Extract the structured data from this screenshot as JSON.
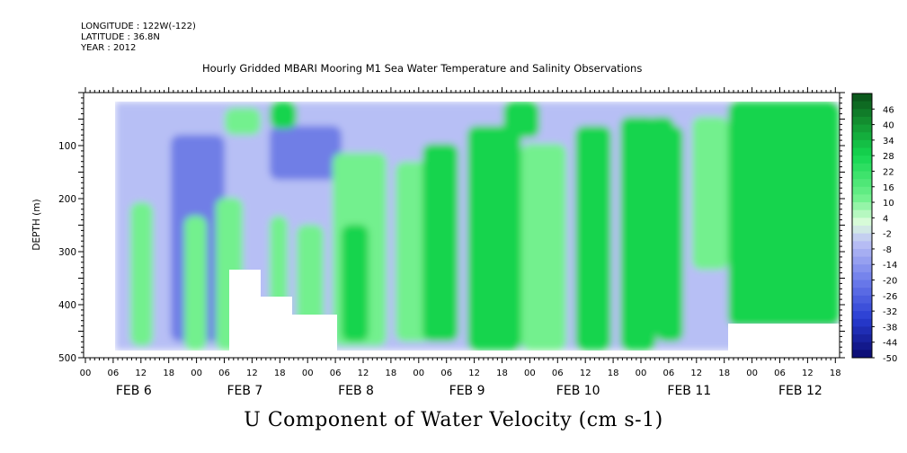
{
  "header": {
    "longitude": "LONGITUDE : 122W(-122)",
    "latitude": "LATITUDE : 36.8N",
    "year": "YEAR : 2012"
  },
  "chart_data": {
    "type": "heatmap",
    "title": "Hourly Gridded MBARI Mooring M1 Sea Water Temperature and Salinity Observations",
    "bottom_title": "U Component of Water Velocity (cm s-1)",
    "ylabel": "DEPTH (m)",
    "ylim": [
      500,
      0
    ],
    "y_ticks": [
      100,
      200,
      300,
      400,
      500
    ],
    "x_hour_ticks": [
      "00",
      "06",
      "12",
      "18",
      "00",
      "06",
      "12",
      "18",
      "00",
      "06",
      "12",
      "18",
      "00",
      "06",
      "12",
      "18",
      "00",
      "06",
      "12",
      "18",
      "00",
      "06",
      "12",
      "18",
      "00",
      "06",
      "12",
      "18"
    ],
    "x_day_labels": [
      "FEB  6",
      "FEB  7",
      "FEB  8",
      "FEB  9",
      "FEB 10",
      "FEB 11",
      "FEB 12"
    ],
    "colorbar_labels": [
      "46",
      "40",
      "34",
      "28",
      "22",
      "16",
      "10",
      "4",
      "-2",
      "-8",
      "-14",
      "-20",
      "-26",
      "-32",
      "-38",
      "-44",
      "-50"
    ],
    "colorbar_range": [
      -50,
      52
    ],
    "colorbar_step": 3,
    "colors": {
      "strong_negative": "#1a1f9a",
      "mid_negative": "#6f7ee6",
      "weak_negative": "#b7bff5",
      "near_zero": "#d6fbd6",
      "weak_positive": "#73f08e",
      "mid_positive": "#16d44d",
      "strong_positive": "#0d6b28"
    }
  }
}
